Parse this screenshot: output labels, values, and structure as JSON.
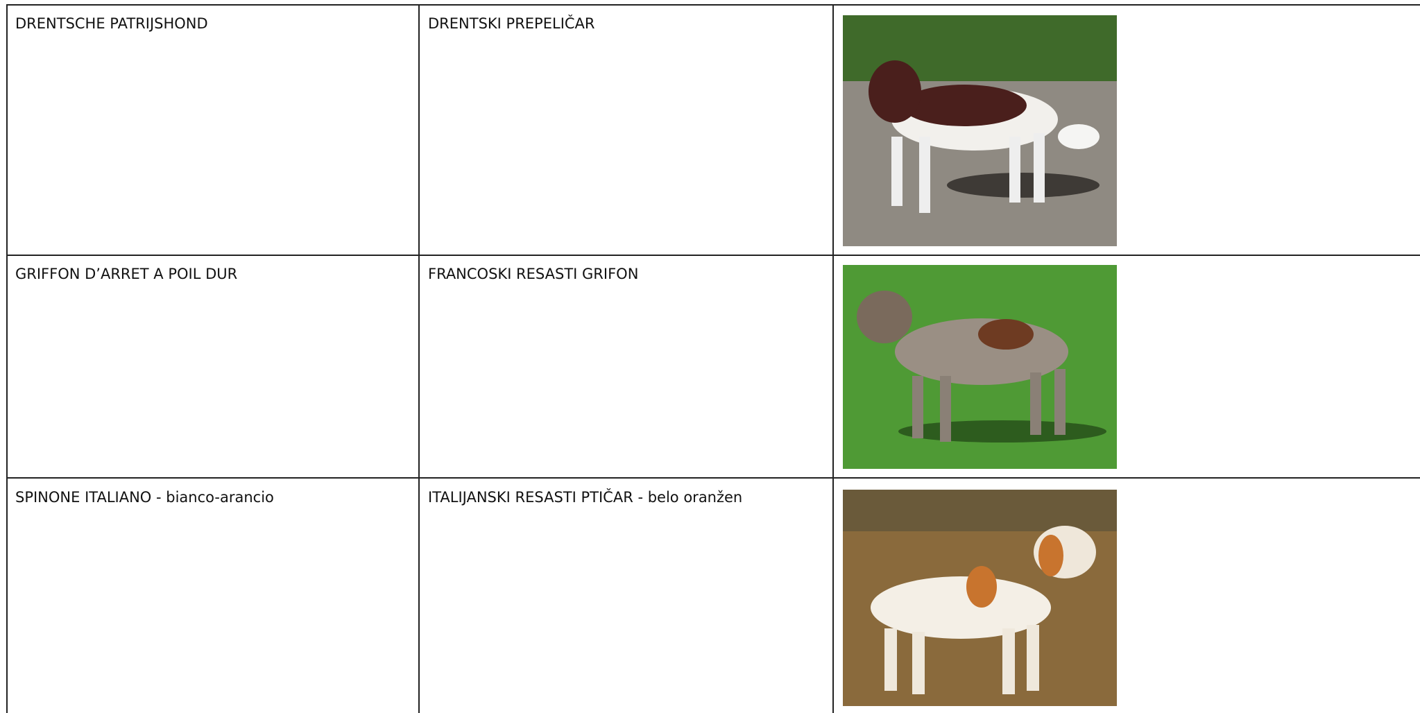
{
  "table": {
    "rows": [
      [
        "DRENTSCHE PATRIJSHOND",
        "DRENTSKI PREPELIČAR"
      ],
      [
        "GRIFFON D’ARRET A POIL DUR",
        "FRANCOSKI RESASTI GRIFON"
      ],
      [
        "SPINONE ITALIANO - bianco-arancio",
        "ITALIJANSKI RESASTI PTIČAR - belo oranžen"
      ]
    ]
  }
}
